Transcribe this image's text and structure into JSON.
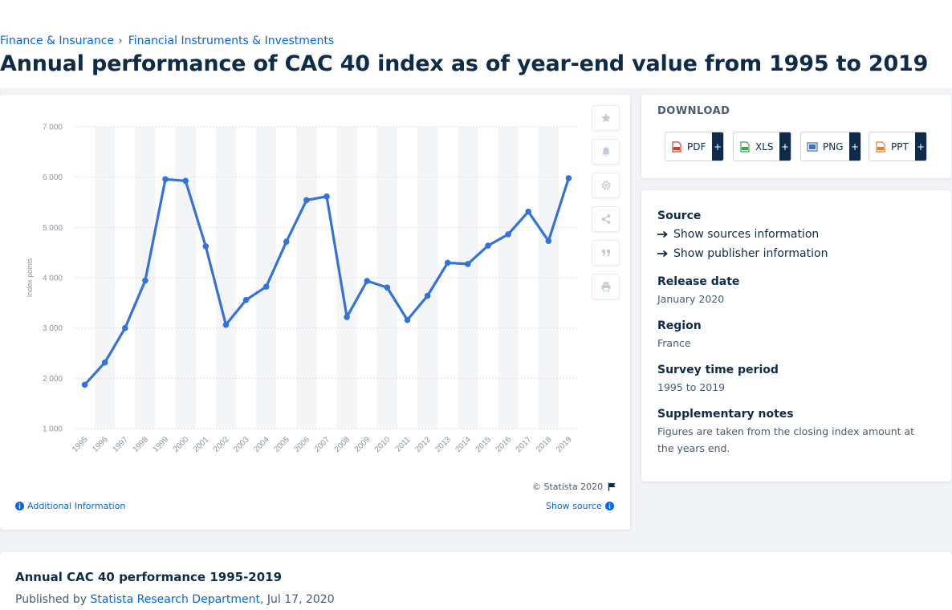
{
  "breadcrumb": {
    "items": [
      "Finance & Insurance",
      "Financial Instruments & Investments"
    ],
    "separator": "›"
  },
  "page": {
    "title": "Annual performance of CAC 40 index as of year-end value from 1995 to 2019"
  },
  "chart_data": {
    "type": "line",
    "x": [
      "1995",
      "1996",
      "1997",
      "1998",
      "1999",
      "2000",
      "2001",
      "2002",
      "2003",
      "2004",
      "2005",
      "2006",
      "2007",
      "2008",
      "2009",
      "2010",
      "2011",
      "2012",
      "2013",
      "2014",
      "2015",
      "2016",
      "2017",
      "2018",
      "2019"
    ],
    "series": [
      {
        "values": [
          1872,
          2316,
          2999,
          3943,
          5958,
          5926,
          4625,
          3064,
          3558,
          3821,
          4715,
          5542,
          5614,
          3218,
          3936,
          3805,
          3160,
          3641,
          4296,
          4273,
          4637,
          4862,
          5313,
          4731,
          5978
        ]
      }
    ],
    "title": "",
    "xlabel": "",
    "ylabel": "Index points",
    "ylim": [
      1000,
      7000
    ],
    "yticks": [
      1000,
      2000,
      3000,
      4000,
      5000,
      6000,
      7000
    ],
    "ytick_labels": [
      "1 000",
      "2 000",
      "3 000",
      "4 000",
      "5 000",
      "6 000",
      "7 000"
    ],
    "grid": true,
    "alternating_column_bands": true,
    "colors": {
      "line": "#3372d6",
      "band": "#f4f5f7",
      "grid": "#dde1e7",
      "text": "#8a96a3"
    }
  },
  "chart_card": {
    "copyright": "© Statista 2020",
    "additional_info": "Additional Information",
    "show_source": "Show source",
    "side_buttons": [
      "star-icon",
      "bell-icon",
      "gear-icon",
      "share-icon",
      "quote-icon",
      "print-icon"
    ]
  },
  "download": {
    "heading": "DOWNLOAD",
    "buttons": [
      {
        "label": "PDF",
        "icon": "pdf-file-icon",
        "color": "#d93a2b"
      },
      {
        "label": "XLS",
        "icon": "xls-file-icon",
        "color": "#3ea548"
      },
      {
        "label": "PNG",
        "icon": "png-file-icon",
        "color": "#3b6fd4"
      },
      {
        "label": "PPT",
        "icon": "ppt-file-icon",
        "color": "#e8792b"
      }
    ],
    "plus": "+"
  },
  "info": {
    "source_label": "Source",
    "show_sources": "Show sources information",
    "show_publisher": "Show publisher information",
    "release_label": "Release date",
    "release_value": "January 2020",
    "region_label": "Region",
    "region_value": "France",
    "period_label": "Survey time period",
    "period_value": "1995 to 2019",
    "notes_label": "Supplementary notes",
    "notes_value": "Figures are taken from the closing index amount at the years end."
  },
  "footer": {
    "title": "Annual CAC 40 performance 1995-2019",
    "published_by": "Published by",
    "author": "Statista Research Department",
    "date": ", Jul 17, 2020"
  },
  "theme": {
    "accent": "#0666e5",
    "navy": "#0f2b4a"
  }
}
